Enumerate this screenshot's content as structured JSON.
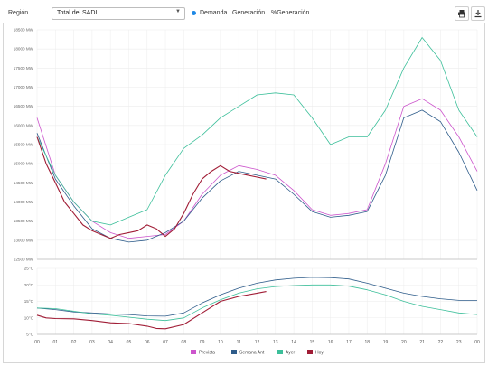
{
  "toolbar": {
    "region_label": "Región",
    "region_value": "Total del SADI",
    "modes": [
      "Demanda",
      "Generación",
      "%Generación"
    ]
  },
  "colors": {
    "prevista": "#cc55cc",
    "semana_ant": "#2e5c8a",
    "ayer": "#3cbf9a",
    "hoy": "#a01c35",
    "radio": "#1e88e5"
  },
  "chart_data": [
    {
      "type": "line",
      "ylabel_unit": "MW",
      "ylim": [
        12500,
        18500
      ],
      "yticks": [
        "12500 MW",
        "13000 MW",
        "13500 MW",
        "14000 MW",
        "14500 MW",
        "15000 MW",
        "15500 MW",
        "16000 MW",
        "16500 MW",
        "17000 MW",
        "17500 MW",
        "18000 MW",
        "18500 MW"
      ],
      "grid": true,
      "series": [
        {
          "name": "Prevista",
          "x": [
            0,
            1,
            2,
            3,
            4,
            5,
            6,
            7,
            8,
            9,
            10,
            11,
            12,
            13,
            14,
            15,
            16,
            17,
            18,
            19,
            20,
            21,
            22,
            23,
            24
          ],
          "values": [
            16200,
            14700,
            14000,
            13500,
            13200,
            13050,
            13100,
            13150,
            13500,
            14200,
            14700,
            14950,
            14850,
            14700,
            14300,
            13800,
            13650,
            13700,
            13800,
            15000,
            16500,
            16700,
            16400,
            15700,
            14800
          ]
        },
        {
          "name": "Semana Ant",
          "x": [
            0,
            1,
            2,
            3,
            4,
            5,
            6,
            7,
            8,
            9,
            10,
            11,
            12,
            13,
            14,
            15,
            16,
            17,
            18,
            19,
            20,
            21,
            22,
            23,
            24
          ],
          "values": [
            15800,
            14600,
            13900,
            13300,
            13050,
            12950,
            13000,
            13200,
            13500,
            14100,
            14550,
            14800,
            14700,
            14600,
            14200,
            13750,
            13600,
            13650,
            13750,
            14700,
            16200,
            16400,
            16100,
            15300,
            14300
          ]
        },
        {
          "name": "Ayer",
          "x": [
            0,
            1,
            2,
            3,
            4,
            5,
            6,
            7,
            8,
            9,
            10,
            11,
            12,
            13,
            14,
            15,
            16,
            17,
            18,
            19,
            20,
            21,
            22,
            23,
            24
          ],
          "values": [
            15700,
            14700,
            14000,
            13500,
            13400,
            13600,
            13800,
            14700,
            15400,
            15750,
            16200,
            16500,
            16800,
            16850,
            16800,
            16200,
            15500,
            15700,
            15700,
            16400,
            17500,
            18300,
            17700,
            16400,
            15700
          ]
        },
        {
          "name": "Hoy",
          "x": [
            0,
            0.5,
            1,
            1.5,
            2,
            2.5,
            3,
            3.5,
            4,
            4.5,
            5,
            5.5,
            6,
            6.5,
            7,
            7.5,
            8,
            8.5,
            9,
            9.5,
            10,
            10.5,
            11,
            11.5,
            12,
            12.5
          ],
          "values": [
            15700,
            15000,
            14500,
            14000,
            13700,
            13400,
            13250,
            13150,
            13050,
            13150,
            13200,
            13250,
            13400,
            13300,
            13100,
            13300,
            13700,
            14200,
            14600,
            14800,
            14950,
            14800,
            14750,
            14700,
            14650,
            14600
          ]
        }
      ]
    },
    {
      "type": "line",
      "ylabel_unit": "°C",
      "ylim": [
        5,
        25
      ],
      "yticks": [
        "5°C",
        "10°C",
        "15°C",
        "20°C",
        "25°C"
      ],
      "x_ticks": [
        "00",
        "01",
        "02",
        "03",
        "04",
        "05",
        "06",
        "07",
        "08",
        "09",
        "10",
        "11",
        "12",
        "13",
        "14",
        "15",
        "16",
        "17",
        "18",
        "19",
        "20",
        "21",
        "22",
        "23",
        "00"
      ],
      "grid": true,
      "legend_position": "bottom",
      "series": [
        {
          "name": "Semana Ant",
          "x": [
            0,
            1,
            2,
            3,
            4,
            5,
            6,
            7,
            8,
            9,
            10,
            11,
            12,
            13,
            14,
            15,
            16,
            17,
            18,
            19,
            20,
            21,
            22,
            23,
            24
          ],
          "values": [
            13,
            12.5,
            11.8,
            11.5,
            11.2,
            11,
            10.6,
            10.5,
            11.5,
            14.5,
            17,
            19,
            20.5,
            21.5,
            22,
            22.3,
            22.2,
            21.8,
            20.5,
            19,
            17.5,
            16.5,
            15.8,
            15.3,
            15.3
          ]
        },
        {
          "name": "Ayer",
          "x": [
            0,
            1,
            2,
            3,
            4,
            5,
            6,
            7,
            8,
            9,
            10,
            11,
            12,
            13,
            14,
            15,
            16,
            17,
            18,
            19,
            20,
            21,
            22,
            23,
            24
          ],
          "values": [
            13,
            12.8,
            12,
            11.2,
            10.8,
            10.2,
            9.6,
            9.2,
            10,
            13,
            15.5,
            17.5,
            18.8,
            19.5,
            19.8,
            20,
            20,
            19.6,
            18.5,
            17,
            15,
            13.5,
            12.5,
            11.5,
            11
          ]
        },
        {
          "name": "Hoy",
          "x": [
            0,
            0.5,
            1,
            2,
            3,
            4,
            5,
            6,
            6.5,
            7,
            8,
            9,
            10,
            11,
            12,
            12.5
          ],
          "values": [
            10.8,
            10,
            9.8,
            9.7,
            9.2,
            8.5,
            8.3,
            7.5,
            6.8,
            6.7,
            8,
            11.5,
            15,
            16.5,
            17.5,
            18
          ]
        }
      ]
    }
  ],
  "legend": [
    {
      "label": "Prevista",
      "color": "#cc55cc"
    },
    {
      "label": "Semana Ant",
      "color": "#2e5c8a"
    },
    {
      "label": "Ayer",
      "color": "#3cbf9a"
    },
    {
      "label": "Hoy",
      "color": "#a01c35"
    }
  ]
}
